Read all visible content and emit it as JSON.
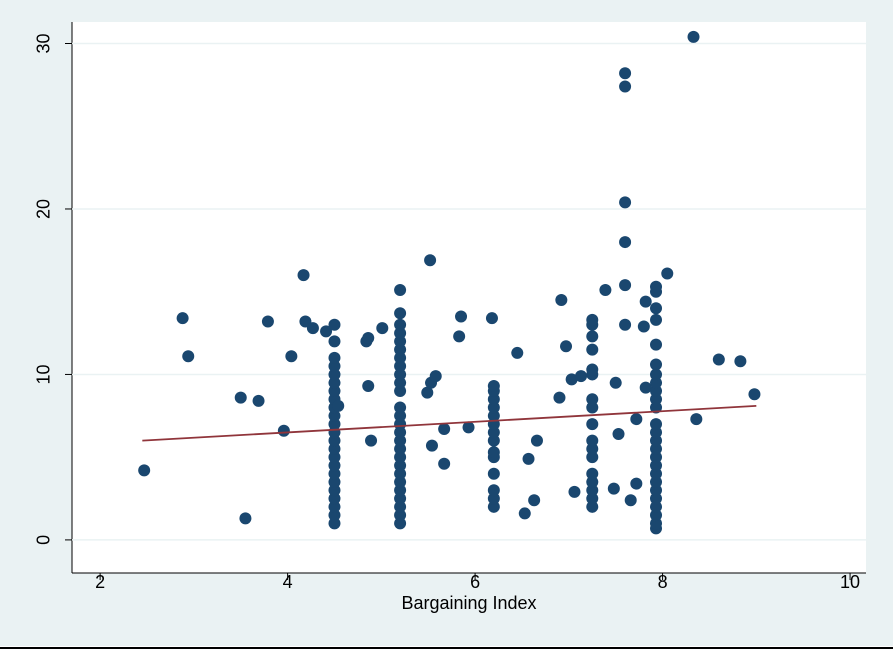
{
  "chart_data": {
    "type": "scatter",
    "x_label": "Bargaining Index",
    "xlim": [
      1.7,
      10.17
    ],
    "ylim": [
      -2,
      31.3
    ],
    "xticks": [
      2,
      4,
      6,
      8,
      10
    ],
    "yticks": [
      0,
      10,
      20,
      30
    ],
    "grid": true,
    "series": [
      {
        "type": "scatter",
        "color": "#1a476f",
        "x": [
          2.47,
          2.88,
          2.94,
          3.5,
          3.55,
          3.69,
          3.79,
          3.96,
          4.04,
          4.17,
          4.19,
          4.27,
          4.41,
          4.5,
          4.5,
          4.5,
          4.5,
          4.5,
          4.5,
          4.5,
          4.5,
          4.5,
          4.5,
          4.5,
          4.5,
          4.5,
          4.5,
          4.5,
          4.5,
          4.5,
          4.5,
          4.5,
          4.5,
          4.5,
          4.5,
          4.5,
          4.54,
          4.84,
          4.86,
          4.86,
          4.89,
          5.01,
          5.2,
          5.2,
          5.2,
          5.2,
          5.2,
          5.2,
          5.2,
          5.2,
          5.2,
          5.2,
          5.2,
          5.2,
          5.2,
          5.2,
          5.2,
          5.2,
          5.2,
          5.2,
          5.2,
          5.2,
          5.2,
          5.2,
          5.2,
          5.2,
          5.2,
          5.2,
          5.49,
          5.52,
          5.53,
          5.54,
          5.58,
          5.67,
          5.67,
          5.83,
          5.85,
          5.93,
          6.2,
          6.2,
          6.2,
          6.2,
          6.2,
          6.2,
          6.2,
          6.2,
          6.2,
          6.2,
          6.2,
          6.2,
          6.2,
          6.2,
          6.18,
          6.45,
          6.53,
          6.57,
          6.63,
          6.66,
          6.9,
          6.92,
          6.97,
          7.03,
          7.06,
          7.13,
          7.25,
          7.25,
          7.25,
          7.25,
          7.25,
          7.25,
          7.25,
          7.25,
          7.25,
          7.25,
          7.25,
          7.25,
          7.25,
          7.25,
          7.25,
          7.25,
          7.25,
          7.39,
          7.48,
          7.5,
          7.53,
          7.6,
          7.6,
          7.6,
          7.6,
          7.6,
          7.6,
          7.66,
          7.72,
          7.72,
          7.8,
          7.82,
          7.82,
          7.93,
          7.93,
          7.93,
          7.93,
          7.93,
          7.93,
          7.93,
          7.93,
          7.93,
          7.93,
          7.93,
          7.93,
          7.93,
          7.93,
          7.93,
          7.93,
          7.93,
          7.93,
          7.93,
          7.93,
          7.93,
          7.93,
          7.93,
          7.93,
          7.93,
          8.05,
          8.33,
          8.36,
          8.6,
          8.83,
          8.98
        ],
        "values": [
          4.2,
          13.4,
          11.1,
          8.6,
          1.3,
          8.4,
          13.2,
          6.6,
          11.1,
          16.0,
          13.2,
          12.8,
          12.6,
          1,
          1.5,
          2,
          2.5,
          3,
          3.5,
          4,
          4.5,
          5,
          5.5,
          6,
          6.5,
          7,
          7.5,
          8,
          8.5,
          9,
          9.5,
          10,
          10.5,
          11,
          12,
          13,
          8.1,
          12.0,
          12.2,
          9.3,
          6.0,
          12.8,
          1,
          1.5,
          2,
          2.5,
          3,
          3.5,
          4,
          4.5,
          5,
          5.5,
          6,
          6.5,
          7,
          7.5,
          8,
          9,
          9.5,
          10,
          10.5,
          11,
          11.5,
          12,
          12.5,
          13,
          13.7,
          15.1,
          8.9,
          16.9,
          9.5,
          5.7,
          9.9,
          4.6,
          6.7,
          12.3,
          13.5,
          6.8,
          2,
          2.5,
          3,
          4,
          5,
          5.3,
          6,
          6.5,
          7,
          7.5,
          8,
          8.5,
          9,
          9.3,
          13.4,
          11.3,
          1.6,
          4.9,
          2.4,
          6.0,
          8.6,
          14.5,
          11.7,
          9.7,
          2.9,
          9.9,
          2,
          2.5,
          3,
          3.5,
          4,
          5,
          5.5,
          6,
          7,
          8,
          8.5,
          10,
          10.3,
          11.5,
          12.3,
          13,
          13.3,
          15.1,
          3.1,
          9.5,
          6.4,
          13,
          15.4,
          18,
          20.4,
          27.4,
          28.2,
          2.4,
          3.4,
          7.3,
          12.9,
          14.4,
          9.2,
          0.7,
          1,
          1.5,
          2,
          2.5,
          3,
          3.5,
          4,
          4.5,
          5,
          5.5,
          6,
          6.5,
          7,
          8,
          8.5,
          9,
          9.5,
          10,
          10.6,
          11.8,
          13.3,
          14,
          15,
          15.3,
          16.1,
          30.4,
          7.3,
          10.9,
          10.8,
          8.8
        ]
      },
      {
        "type": "line",
        "color": "#90353b",
        "x": [
          2.45,
          9.0
        ],
        "values": [
          6.0,
          8.1
        ]
      }
    ]
  }
}
